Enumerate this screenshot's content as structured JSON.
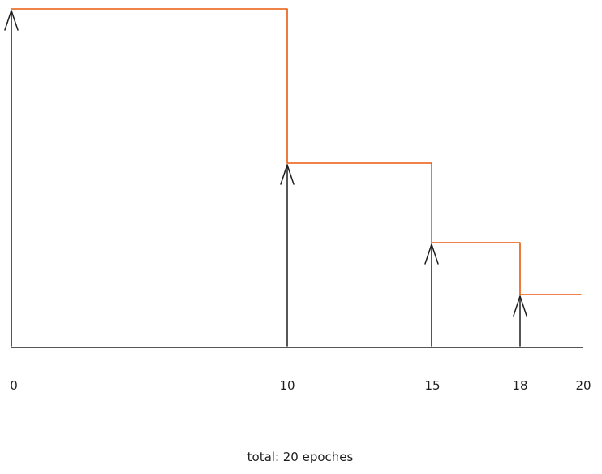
{
  "chart_data": {
    "type": "line",
    "description_kind": "step schedule",
    "x_ticks": [
      "0",
      "10",
      "15",
      "18",
      "20"
    ],
    "milestones": [
      0,
      10,
      15,
      18
    ],
    "x_max": 20,
    "steps": [
      {
        "x_start": 0,
        "x_end": 10,
        "level": 4
      },
      {
        "x_start": 10,
        "x_end": 15,
        "level": 3
      },
      {
        "x_start": 15,
        "x_end": 18,
        "level": 2
      },
      {
        "x_start": 18,
        "x_end": 20,
        "level": 1
      }
    ],
    "caption": "total: 20 epoches",
    "colors": {
      "step_line": "#e8590c",
      "ink": "#1e1e1e"
    }
  }
}
